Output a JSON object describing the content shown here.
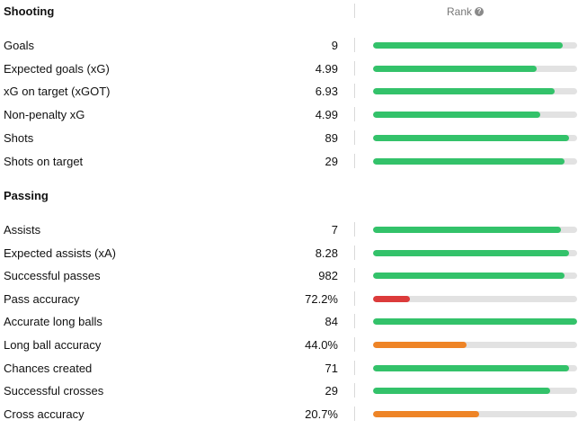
{
  "colors": {
    "green": "#33c26a",
    "red": "#dc3b3b",
    "orange": "#ee8426",
    "track": "#e2e2e2"
  },
  "shooting": {
    "title": "Shooting",
    "rank_label": "Rank",
    "help_icon": "question-circle-icon",
    "rows": [
      {
        "label": "Goals",
        "value": "9",
        "rank_fraction": 0.93,
        "color": "green"
      },
      {
        "label": "Expected goals (xG)",
        "value": "4.99",
        "rank_fraction": 0.8,
        "color": "green"
      },
      {
        "label": "xG on target (xGOT)",
        "value": "6.93",
        "rank_fraction": 0.89,
        "color": "green"
      },
      {
        "label": "Non-penalty xG",
        "value": "4.99",
        "rank_fraction": 0.82,
        "color": "green"
      },
      {
        "label": "Shots",
        "value": "89",
        "rank_fraction": 0.96,
        "color": "green"
      },
      {
        "label": "Shots on target",
        "value": "29",
        "rank_fraction": 0.94,
        "color": "green"
      }
    ]
  },
  "passing": {
    "title": "Passing",
    "rows": [
      {
        "label": "Assists",
        "value": "7",
        "rank_fraction": 0.92,
        "color": "green"
      },
      {
        "label": "Expected assists (xA)",
        "value": "8.28",
        "rank_fraction": 0.96,
        "color": "green"
      },
      {
        "label": "Successful passes",
        "value": "982",
        "rank_fraction": 0.94,
        "color": "green"
      },
      {
        "label": "Pass accuracy",
        "value": "72.2%",
        "rank_fraction": 0.18,
        "color": "red"
      },
      {
        "label": "Accurate long balls",
        "value": "84",
        "rank_fraction": 1.0,
        "color": "green"
      },
      {
        "label": "Long ball accuracy",
        "value": "44.0%",
        "rank_fraction": 0.46,
        "color": "orange"
      },
      {
        "label": "Chances created",
        "value": "71",
        "rank_fraction": 0.96,
        "color": "green"
      },
      {
        "label": "Successful crosses",
        "value": "29",
        "rank_fraction": 0.87,
        "color": "green"
      },
      {
        "label": "Cross accuracy",
        "value": "20.7%",
        "rank_fraction": 0.52,
        "color": "orange"
      }
    ]
  }
}
